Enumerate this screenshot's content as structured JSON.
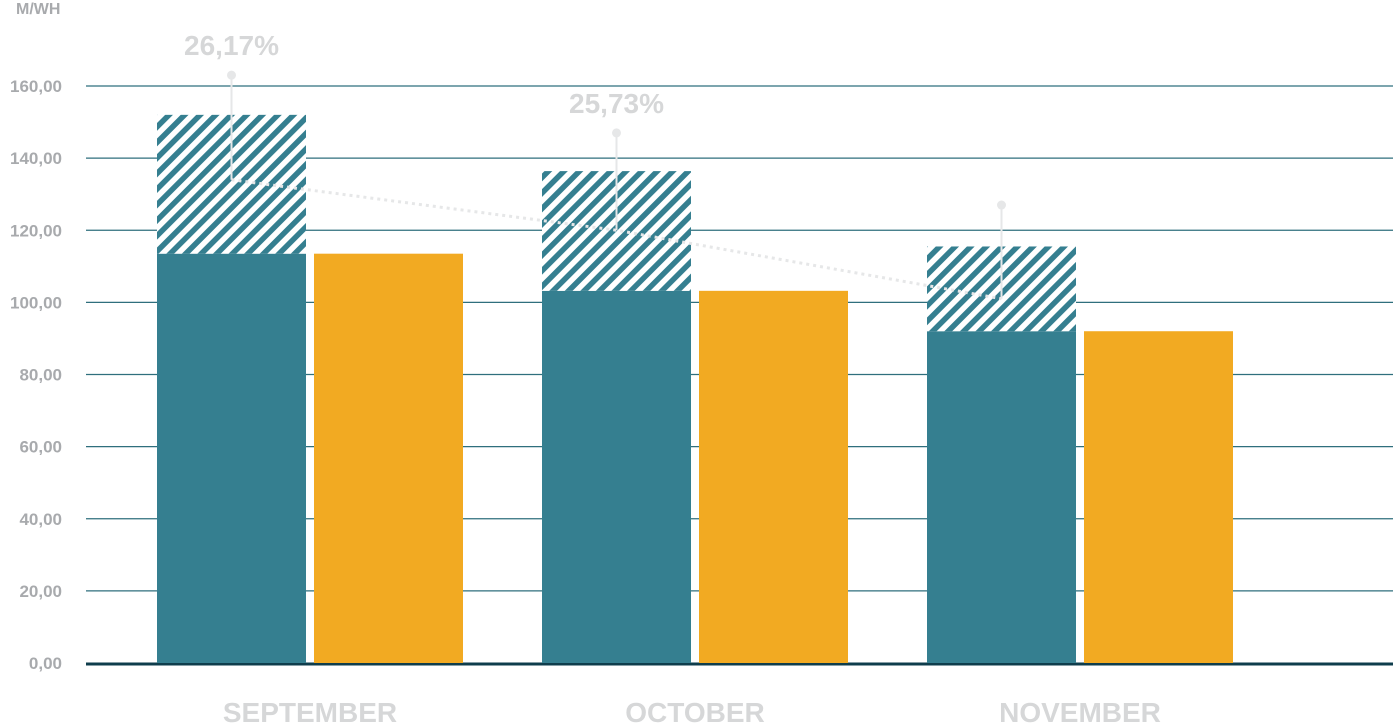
{
  "chart_data": {
    "type": "bar",
    "ylabel": "M/WH",
    "ylim": [
      0,
      160000
    ],
    "yticks": [
      0,
      20000,
      40000,
      60000,
      80000,
      100000,
      120000,
      140000,
      160000
    ],
    "ytick_labels": [
      "0,00",
      "20,00",
      "40,00",
      "60,00",
      "80,00",
      "100,00",
      "120,00",
      "140,00",
      "160,00"
    ],
    "categories": [
      "SEPTEMBER",
      "OCTOBER",
      "NOVEMBER"
    ],
    "series": [
      {
        "values": [
          113500,
          103200,
          92000
        ],
        "color": "#357f90"
      },
      {
        "values": [
          38500,
          33200,
          23500
        ],
        "color": "#357f90",
        "pattern": "diagonal-hatch",
        "stacked_on": 0
      },
      {
        "values": [
          113500,
          103200,
          92000
        ],
        "color": "#f2aa22"
      }
    ],
    "trend_line": {
      "values": [
        134000,
        120000,
        101000
      ],
      "style": "dotted",
      "color": "#e6e7e8"
    },
    "annotations": [
      {
        "category": "SEPTEMBER",
        "label": "26,17%",
        "marker_value": 163000
      },
      {
        "category": "OCTOBER",
        "label": "25,73%",
        "marker_value": 147000
      },
      {
        "category": "NOVEMBER",
        "label": "",
        "marker_value": 127000
      }
    ],
    "grid": true,
    "colors": {
      "grid": "#2f6f7d",
      "baseline": "#0f3d4c",
      "teal": "#357f90",
      "gold": "#f2aa22"
    }
  }
}
